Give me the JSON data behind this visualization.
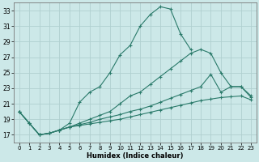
{
  "xlabel": "Humidex (Indice chaleur)",
  "bg_color": "#cce8e8",
  "grid_color": "#b0d0d0",
  "line_color": "#2a7a6a",
  "xlim": [
    -0.5,
    23.5
  ],
  "ylim": [
    16.0,
    34.0
  ],
  "yticks": [
    17,
    19,
    21,
    23,
    25,
    27,
    29,
    31,
    33
  ],
  "xticks": [
    0,
    1,
    2,
    3,
    4,
    5,
    6,
    7,
    8,
    9,
    10,
    11,
    12,
    13,
    14,
    15,
    16,
    17,
    18,
    19,
    20,
    21,
    22,
    23
  ],
  "lines": [
    {
      "x": [
        0,
        1,
        2,
        3,
        4,
        5,
        6,
        7,
        8,
        9,
        10,
        11,
        12,
        13,
        14,
        15,
        16,
        17
      ],
      "y": [
        20.0,
        18.5,
        17.0,
        17.2,
        17.6,
        18.5,
        21.2,
        22.5,
        23.2,
        25.0,
        27.3,
        28.5,
        31.0,
        32.5,
        33.5,
        33.2,
        30.0,
        28.0
      ]
    },
    {
      "x": [
        0,
        1,
        2,
        3,
        4,
        5,
        6,
        7,
        8,
        9,
        10,
        11,
        12,
        13,
        14,
        15,
        16,
        17,
        18,
        19,
        20,
        21,
        22,
        23
      ],
      "y": [
        20.0,
        18.5,
        17.0,
        17.2,
        17.6,
        18.0,
        18.5,
        19.0,
        19.5,
        20.0,
        21.0,
        22.0,
        22.5,
        23.5,
        24.5,
        25.5,
        26.5,
        27.5,
        28.0,
        27.5,
        25.0,
        23.2,
        23.2,
        22.0
      ]
    },
    {
      "x": [
        0,
        1,
        2,
        3,
        4,
        5,
        6,
        7,
        8,
        9,
        10,
        11,
        12,
        13,
        14,
        15,
        16,
        17,
        18,
        19,
        20,
        21,
        22,
        23
      ],
      "y": [
        20.0,
        18.5,
        17.0,
        17.2,
        17.6,
        18.0,
        18.3,
        18.6,
        19.0,
        19.3,
        19.6,
        20.0,
        20.3,
        20.7,
        21.2,
        21.7,
        22.2,
        22.7,
        23.2,
        24.8,
        22.5,
        23.2,
        23.2,
        21.8
      ]
    },
    {
      "x": [
        0,
        1,
        2,
        3,
        4,
        5,
        6,
        7,
        8,
        9,
        10,
        11,
        12,
        13,
        14,
        15,
        16,
        17,
        18,
        19,
        20,
        21,
        22,
        23
      ],
      "y": [
        20.0,
        18.5,
        17.0,
        17.2,
        17.6,
        18.0,
        18.2,
        18.4,
        18.6,
        18.8,
        19.0,
        19.3,
        19.6,
        19.9,
        20.2,
        20.5,
        20.8,
        21.1,
        21.4,
        21.6,
        21.8,
        21.9,
        22.0,
        21.5
      ]
    }
  ]
}
